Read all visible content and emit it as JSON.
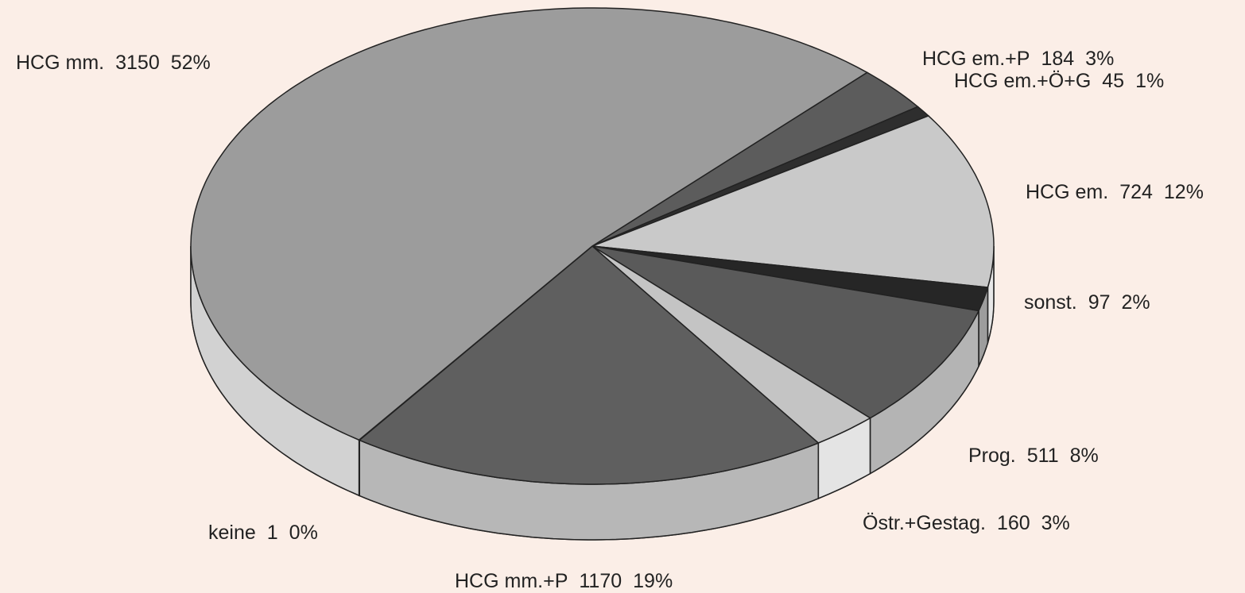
{
  "chart_data": {
    "type": "pie3d",
    "categories": [
      "HCG em.+P",
      "HCG em.+Ö+G",
      "HCG em.",
      "sonst.",
      "Prog.",
      "Östr.+Gestag.",
      "HCG mm.+P",
      "keine",
      "HCG mm."
    ],
    "values": [
      184,
      45,
      724,
      97,
      511,
      160,
      1170,
      1,
      3150
    ],
    "percent_labels": [
      "3%",
      "1%",
      "12%",
      "2%",
      "8%",
      "3%",
      "19%",
      "0%",
      "52%"
    ],
    "colors": [
      "#5c5c5c",
      "#2e2e2e",
      "#c9c9c9",
      "#262626",
      "#5a5a5a",
      "#c4c4c4",
      "#5f5f5f",
      "#888888",
      "#9c9c9c"
    ]
  }
}
